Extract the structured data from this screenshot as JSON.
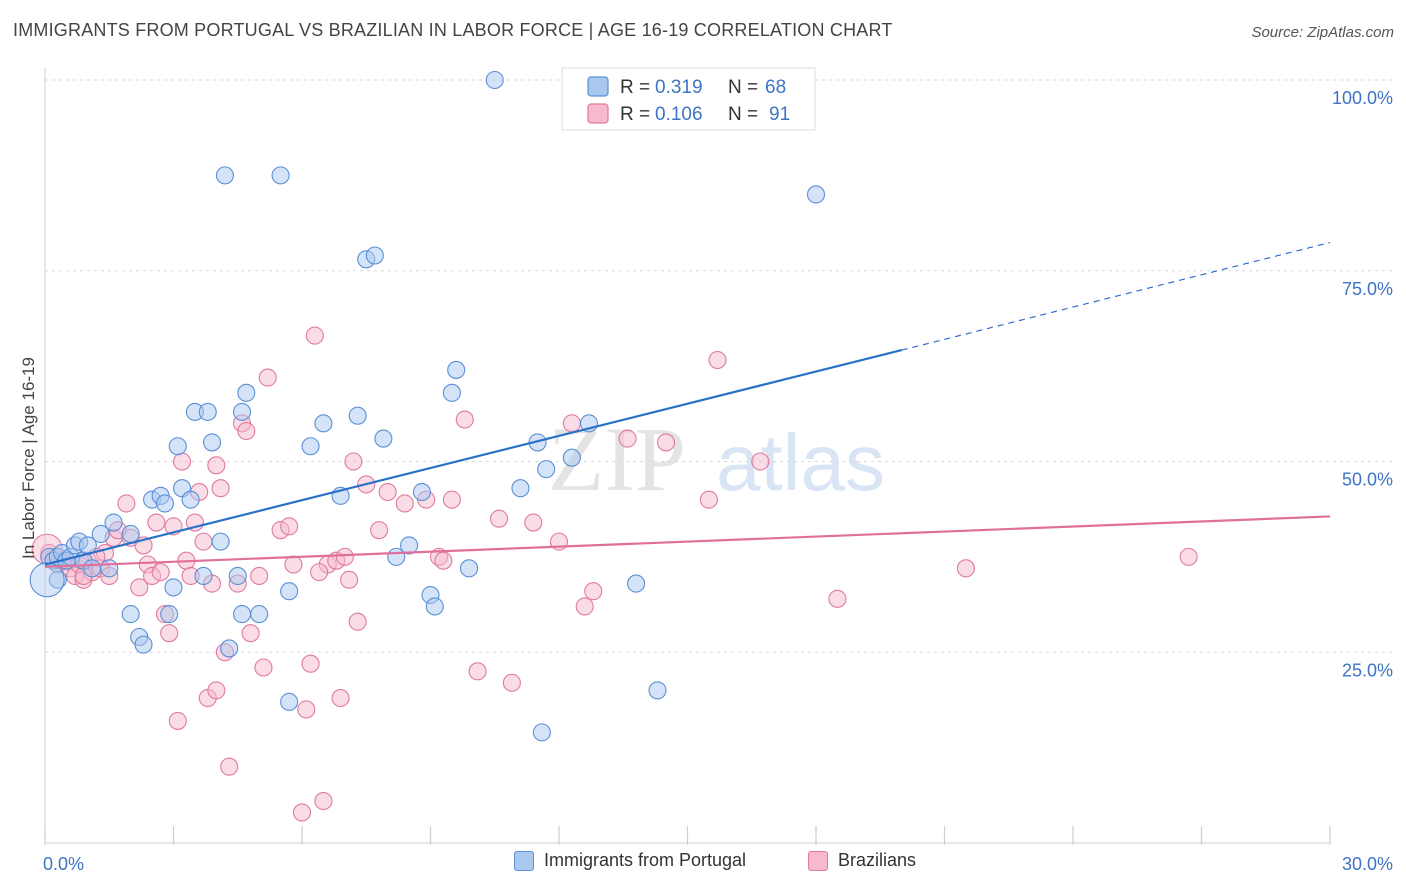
{
  "header": {
    "title": "IMMIGRANTS FROM PORTUGAL VS BRAZILIAN IN LABOR FORCE | AGE 16-19 CORRELATION CHART",
    "source": "Source: ZipAtlas.com"
  },
  "watermark": {
    "zip": "ZIP",
    "atlas": "atlas"
  },
  "chart_data": {
    "type": "scatter",
    "title": "IMMIGRANTS FROM PORTUGAL VS BRAZILIAN IN LABOR FORCE | AGE 16-19 CORRELATION CHART",
    "xlabel": "",
    "ylabel": "In Labor Force | Age 16-19",
    "xlim": [
      0,
      30
    ],
    "ylim": [
      0,
      100
    ],
    "x_tick_labels": [
      "0.0%",
      "30.0%"
    ],
    "y_tick_labels": [
      "100.0%",
      "75.0%",
      "50.0%",
      "25.0%"
    ],
    "y_ticks": [
      100,
      75,
      50,
      25
    ],
    "grid": true,
    "legend_placement": "top-center",
    "colors": {
      "portugal_fill": "#a9c8f0",
      "portugal_stroke": "#5b8fd6",
      "portugal_line": "#2a72c9",
      "brazil_fill": "#f6b9cd",
      "brazil_stroke": "#e07a9f",
      "brazil_line": "#e0709a",
      "tick_label": "#3d74c5",
      "grid": "#d8d8d8"
    },
    "stats": [
      {
        "r_label": "R =",
        "r_value": "0.319",
        "n_label": "N =",
        "n_value": "68"
      },
      {
        "r_label": "R =",
        "r_value": "0.106",
        "n_label": "N =",
        "n_value": "91"
      }
    ],
    "series": [
      {
        "name": "Immigrants from Portugal",
        "trend": {
          "x_start": 0,
          "y_start": 36.5,
          "x_solid_end": 20,
          "y_solid_end": 64.6,
          "x_dash_end": 30,
          "y_dash_end": 78.7
        },
        "points": [
          [
            0.1,
            37.5
          ],
          [
            0.2,
            37
          ],
          [
            0.3,
            37.5
          ],
          [
            0.4,
            38
          ],
          [
            0.5,
            37
          ],
          [
            0.6,
            37.5
          ],
          [
            0.7,
            39
          ],
          [
            0.8,
            39.5
          ],
          [
            0.9,
            37
          ],
          [
            1.0,
            39
          ],
          [
            1.1,
            36
          ],
          [
            1.3,
            40.5
          ],
          [
            1.5,
            36
          ],
          [
            1.6,
            42
          ],
          [
            2.0,
            30
          ],
          [
            2.2,
            27
          ],
          [
            2.3,
            26
          ],
          [
            2.5,
            45
          ],
          [
            2.7,
            45.5
          ],
          [
            2.8,
            44.5
          ],
          [
            2.9,
            30
          ],
          [
            3.0,
            33.5
          ],
          [
            3.2,
            46.5
          ],
          [
            3.4,
            45
          ],
          [
            3.7,
            35
          ],
          [
            3.5,
            56.5
          ],
          [
            3.8,
            56.5
          ],
          [
            3.9,
            52.5
          ],
          [
            4.1,
            39.5
          ],
          [
            4.3,
            25.5
          ],
          [
            4.5,
            35
          ],
          [
            4.6,
            30
          ],
          [
            4.6,
            56.5
          ],
          [
            4.7,
            59
          ],
          [
            5.0,
            30
          ],
          [
            5.7,
            33
          ],
          [
            5.7,
            18.5
          ],
          [
            6.2,
            52
          ],
          [
            6.5,
            55
          ],
          [
            6.9,
            45.5
          ],
          [
            7.3,
            56
          ],
          [
            7.5,
            76.5
          ],
          [
            7.7,
            77
          ],
          [
            7.9,
            53
          ],
          [
            8.2,
            37.5
          ],
          [
            8.5,
            39
          ],
          [
            8.8,
            46
          ],
          [
            9.0,
            32.5
          ],
          [
            9.1,
            31
          ],
          [
            9.5,
            59
          ],
          [
            9.6,
            62
          ],
          [
            9.9,
            36
          ],
          [
            10.5,
            100
          ],
          [
            11.1,
            46.5
          ],
          [
            11.5,
            52.5
          ],
          [
            11.7,
            49
          ],
          [
            11.6,
            14.5
          ],
          [
            12.3,
            50.5
          ],
          [
            12.7,
            55
          ],
          [
            13.2,
            100
          ],
          [
            13.8,
            34
          ],
          [
            14.3,
            20
          ],
          [
            18.0,
            85
          ],
          [
            4.2,
            87.5
          ],
          [
            5.5,
            87.5
          ],
          [
            0.3,
            34.5
          ],
          [
            3.1,
            52
          ],
          [
            2.0,
            40.5
          ]
        ]
      },
      {
        "name": "Brazilians",
        "trend": {
          "x_start": 0,
          "y_start": 36.2,
          "x_end": 30,
          "y_end": 42.8
        },
        "points": [
          [
            0.1,
            38
          ],
          [
            0.2,
            37.5
          ],
          [
            0.3,
            36.5
          ],
          [
            0.5,
            37
          ],
          [
            0.6,
            36
          ],
          [
            0.7,
            35
          ],
          [
            0.8,
            36.5
          ],
          [
            0.9,
            34.5
          ],
          [
            1.0,
            37
          ],
          [
            1.1,
            35.5
          ],
          [
            1.3,
            36
          ],
          [
            1.4,
            38
          ],
          [
            1.5,
            35
          ],
          [
            1.6,
            40
          ],
          [
            1.7,
            41
          ],
          [
            1.9,
            44.5
          ],
          [
            2.0,
            40
          ],
          [
            2.2,
            33.5
          ],
          [
            2.4,
            36.5
          ],
          [
            2.5,
            35
          ],
          [
            2.6,
            42
          ],
          [
            2.7,
            35.5
          ],
          [
            2.8,
            30
          ],
          [
            2.9,
            27.5
          ],
          [
            3.0,
            41.5
          ],
          [
            3.1,
            16
          ],
          [
            3.2,
            50
          ],
          [
            3.3,
            37
          ],
          [
            3.4,
            35
          ],
          [
            3.5,
            42
          ],
          [
            3.6,
            46
          ],
          [
            3.7,
            39.5
          ],
          [
            3.8,
            19
          ],
          [
            3.9,
            34
          ],
          [
            4.0,
            49.5
          ],
          [
            4.1,
            46.5
          ],
          [
            4.2,
            25
          ],
          [
            4.3,
            10
          ],
          [
            4.5,
            34
          ],
          [
            4.6,
            55
          ],
          [
            4.7,
            54
          ],
          [
            4.8,
            27.5
          ],
          [
            5.0,
            35
          ],
          [
            5.1,
            23
          ],
          [
            5.2,
            61
          ],
          [
            5.5,
            41
          ],
          [
            5.7,
            41.5
          ],
          [
            5.8,
            36.5
          ],
          [
            6.0,
            4
          ],
          [
            6.1,
            17.5
          ],
          [
            6.2,
            23.5
          ],
          [
            6.3,
            66.5
          ],
          [
            6.5,
            5.5
          ],
          [
            6.6,
            36.5
          ],
          [
            6.8,
            37
          ],
          [
            6.9,
            19
          ],
          [
            7.0,
            37.5
          ],
          [
            7.1,
            34.5
          ],
          [
            7.2,
            50
          ],
          [
            7.3,
            29
          ],
          [
            7.5,
            47
          ],
          [
            7.8,
            41
          ],
          [
            8.0,
            46
          ],
          [
            8.4,
            44.5
          ],
          [
            8.9,
            45
          ],
          [
            9.2,
            37.5
          ],
          [
            9.5,
            45
          ],
          [
            9.8,
            55.5
          ],
          [
            10.1,
            22.5
          ],
          [
            10.6,
            42.5
          ],
          [
            10.9,
            21
          ],
          [
            11.4,
            42
          ],
          [
            12.0,
            39.5
          ],
          [
            12.3,
            55
          ],
          [
            12.6,
            31
          ],
          [
            12.8,
            33
          ],
          [
            13.6,
            53
          ],
          [
            14.5,
            52.5
          ],
          [
            15.5,
            45
          ],
          [
            16.7,
            50
          ],
          [
            18.5,
            32
          ],
          [
            21.5,
            36
          ],
          [
            26.7,
            37.5
          ],
          [
            1.2,
            37.5
          ],
          [
            2.3,
            39
          ],
          [
            0.4,
            37
          ],
          [
            0.9,
            35
          ],
          [
            6.4,
            35.5
          ],
          [
            9.3,
            37
          ],
          [
            15.7,
            63.3
          ],
          [
            4.0,
            20
          ]
        ]
      }
    ]
  },
  "legend_bottom": [
    {
      "label": "Immigrants from Portugal"
    },
    {
      "label": "Brazilians"
    }
  ]
}
